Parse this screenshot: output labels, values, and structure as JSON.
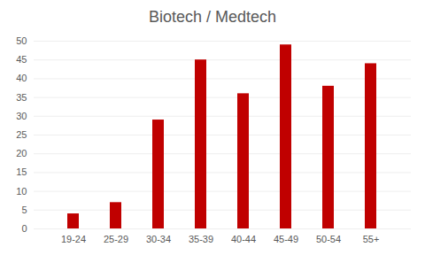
{
  "chart_data": {
    "type": "bar",
    "title": "Biotech / Medtech",
    "categories": [
      "19-24",
      "25-29",
      "30-34",
      "35-39",
      "40-44",
      "45-49",
      "50-54",
      "55+"
    ],
    "values": [
      4,
      7,
      29,
      45,
      36,
      49,
      38,
      44
    ],
    "color": "#c00000",
    "ylim": [
      0,
      50
    ],
    "yticks": [
      0,
      5,
      10,
      15,
      20,
      25,
      30,
      35,
      40,
      45,
      50
    ],
    "grid": true
  }
}
